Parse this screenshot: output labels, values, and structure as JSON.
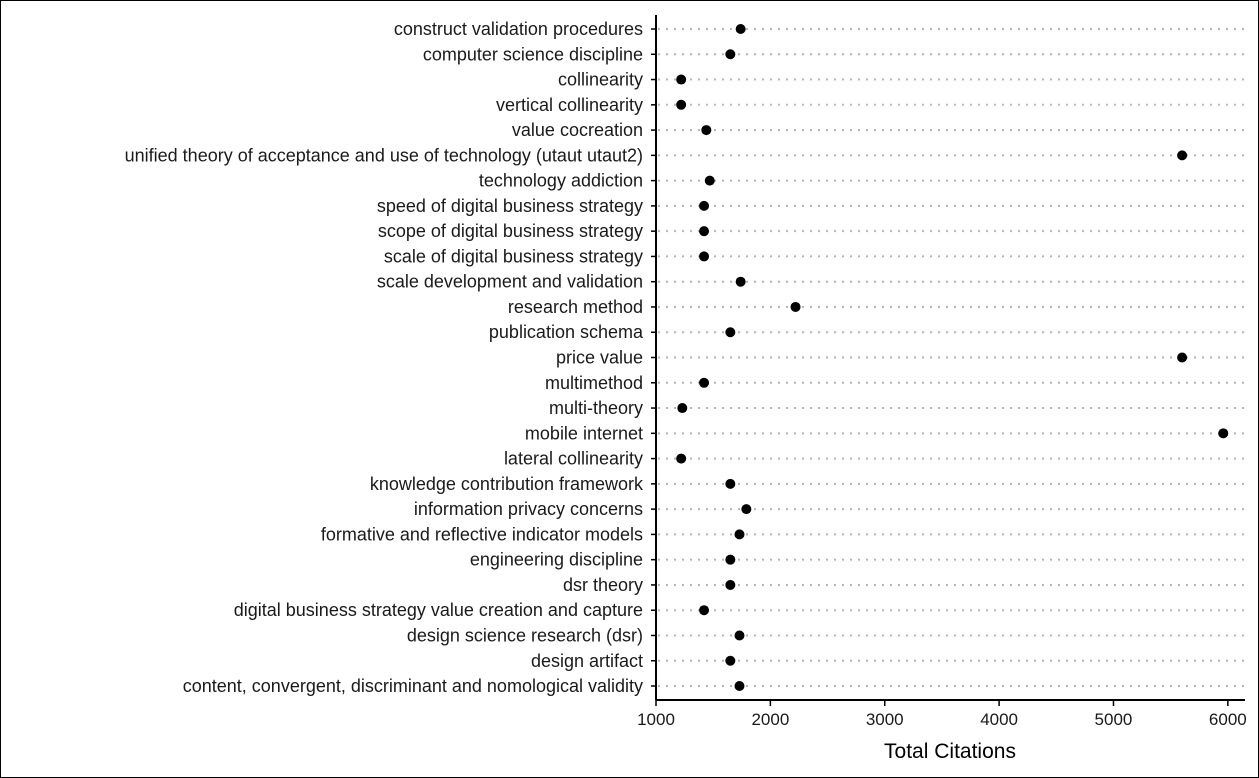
{
  "chart_data": {
    "type": "scatter",
    "style": "dot-plot",
    "xlabel": "Total Citations",
    "ylabel": "",
    "title": "",
    "xlim": [
      1000,
      6150
    ],
    "xticks": [
      1000,
      2000,
      3000,
      4000,
      5000,
      6000
    ],
    "grid": "dotted horizontal lines per category",
    "legend": "none",
    "point_color": "#000000",
    "grid_color": "#b5b5b5",
    "categories": [
      "construct validation procedures",
      "computer science discipline",
      "collinearity",
      "vertical collinearity",
      "value cocreation",
      "unified theory of acceptance and use of technology (utaut utaut2)",
      "technology addiction",
      "speed of digital business strategy",
      "scope of digital business strategy",
      "scale of digital business strategy",
      "scale development and validation",
      "research method",
      "publication schema",
      "price value",
      "multimethod",
      "multi-theory",
      "mobile internet",
      "lateral collinearity",
      "knowledge contribution framework",
      "information privacy concerns",
      "formative and reflective indicator models",
      "engineering discipline",
      "dsr theory",
      "digital business strategy value creation and capture",
      "design science research (dsr)",
      "design artifact",
      "content, convergent, discriminant and nomological validity"
    ],
    "values": [
      1740,
      1650,
      1220,
      1220,
      1440,
      5600,
      1470,
      1420,
      1420,
      1420,
      1740,
      2220,
      1650,
      5600,
      1420,
      1230,
      5960,
      1220,
      1650,
      1790,
      1730,
      1650,
      1650,
      1420,
      1730,
      1650,
      1730
    ]
  }
}
